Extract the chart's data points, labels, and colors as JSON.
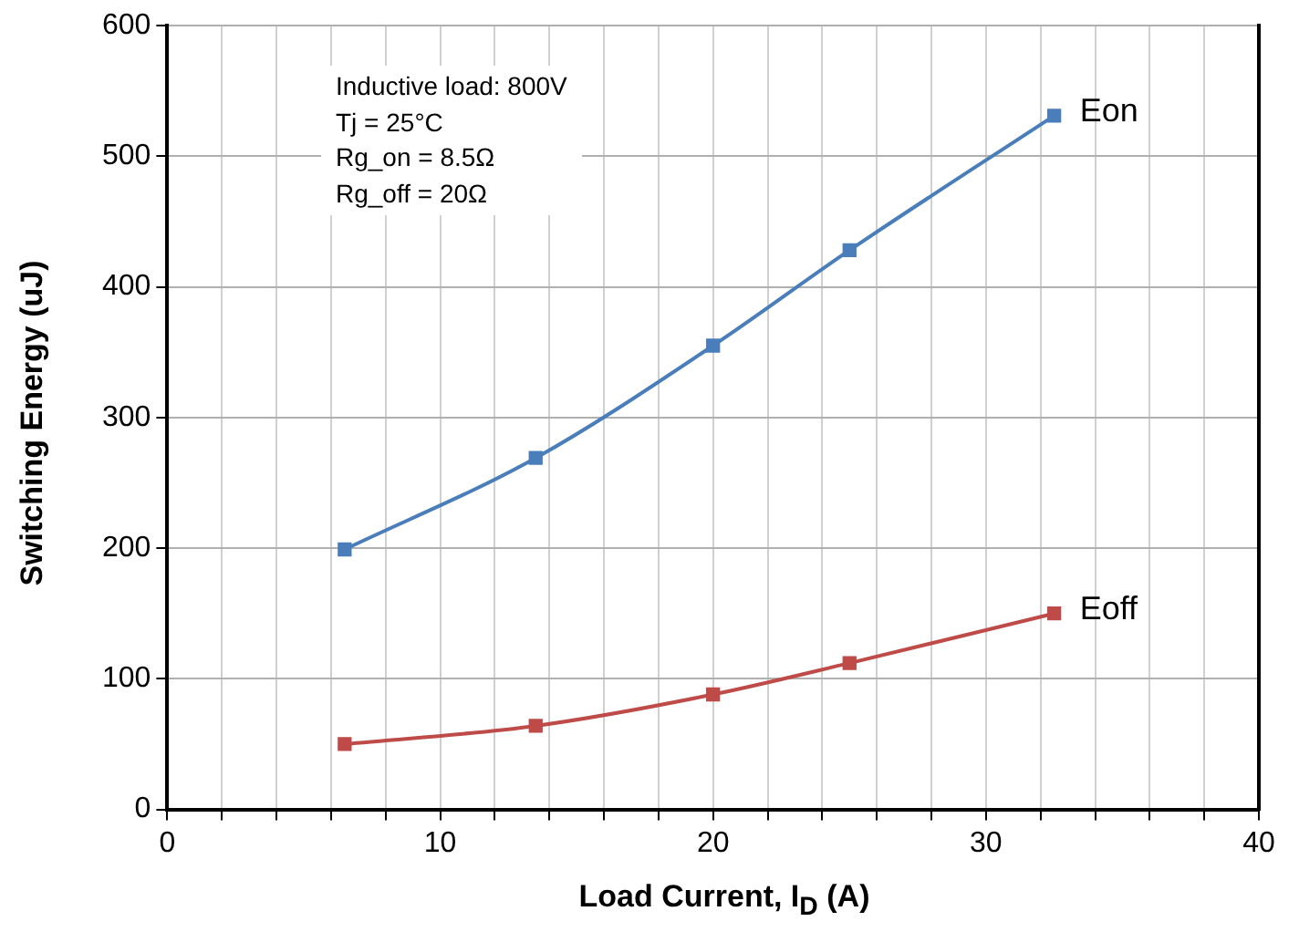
{
  "chart_data": {
    "type": "line",
    "xlabel": "Load Current, I$_{D}$ (A)",
    "ylabel": "Switching Energy (uJ)",
    "xlim": [
      0,
      40
    ],
    "xticks": [
      0,
      {
        "value": 2,
        "label": null
      },
      {
        "value": 4,
        "label": null
      },
      {
        "value": 6,
        "label": null
      },
      {
        "value": 8,
        "label": null
      },
      10,
      {
        "value": 12,
        "label": null
      },
      {
        "value": 14,
        "label": null
      },
      {
        "value": 16,
        "label": null
      },
      {
        "value": 18,
        "label": null
      },
      20,
      {
        "value": 22,
        "label": null
      },
      {
        "value": 24,
        "label": null
      },
      {
        "value": 26,
        "label": null
      },
      {
        "value": 28,
        "label": null
      },
      30,
      {
        "value": 32,
        "label": null
      },
      {
        "value": 34,
        "label": null
      },
      {
        "value": 36,
        "label": null
      },
      {
        "value": 38,
        "label": null
      },
      40
    ],
    "ylim": [
      0,
      600
    ],
    "yticks": [
      0,
      100,
      200,
      300,
      400,
      500,
      600
    ],
    "grid": true,
    "legend": false,
    "marker": "square",
    "line_style": "solid",
    "x": [
      6.5,
      13.5,
      20,
      25,
      32.5
    ],
    "series": [
      {
        "name": "Eon",
        "color": "#4a7ebb",
        "values": [
          199,
          269,
          355,
          428,
          531
        ]
      },
      {
        "name": "Eoff",
        "color": "#be4b48",
        "values": [
          50,
          64,
          88,
          112,
          150
        ]
      }
    ],
    "annotations": [
      "Inductive load: 800V",
      "Tj = 25°C",
      "Rg_on = 8.5Ω",
      "Rg_off = 20Ω"
    ]
  }
}
